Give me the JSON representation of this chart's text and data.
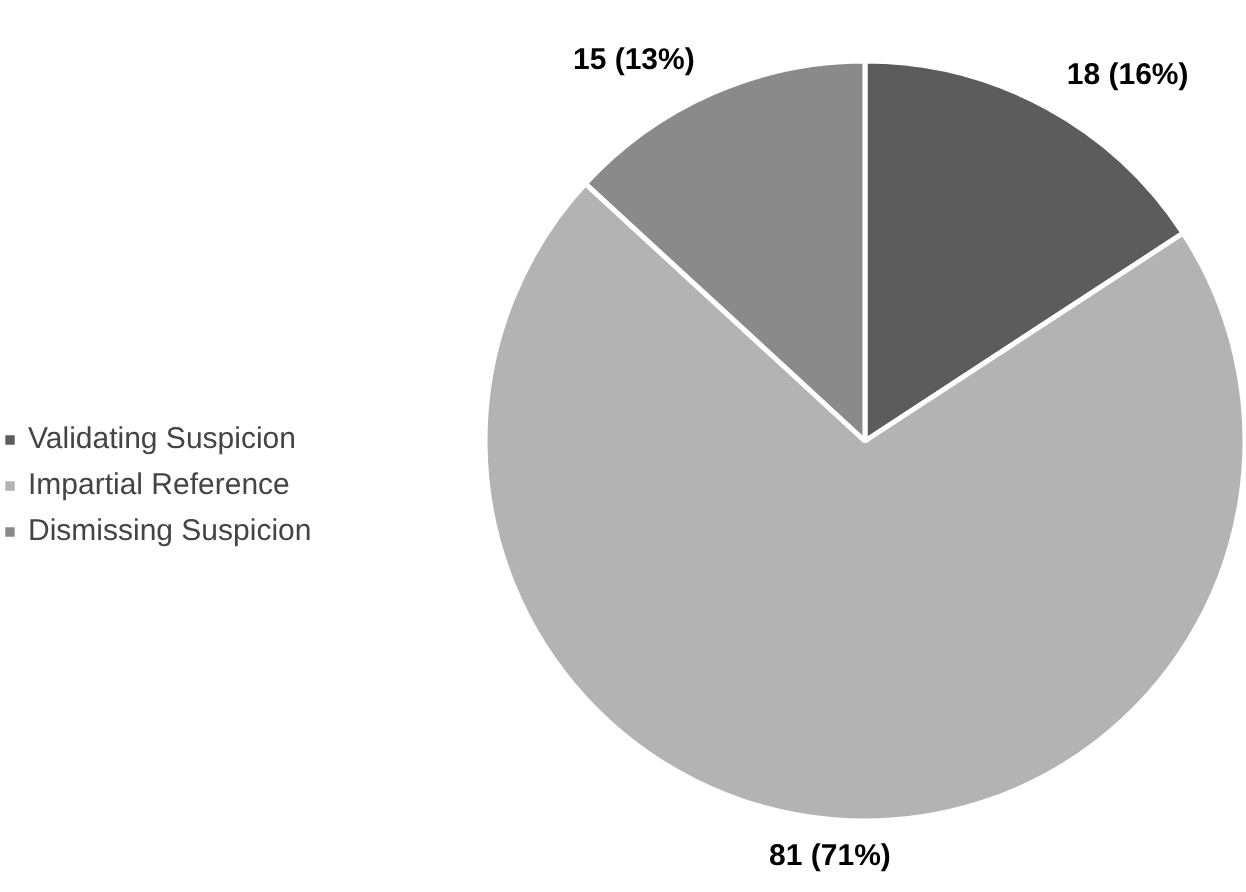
{
  "chart_data": {
    "type": "pie",
    "categories": [
      "Validating Suspicion",
      "Impartial Reference",
      "Dismissing Suspicion"
    ],
    "values": [
      18,
      81,
      15
    ],
    "colors": [
      "#5c5c5c",
      "#b3b3b3",
      "#8a8a8a"
    ],
    "value_labels": [
      "18 (16%)",
      "81 (71%)",
      "15 (13%)"
    ],
    "legend": "left"
  }
}
